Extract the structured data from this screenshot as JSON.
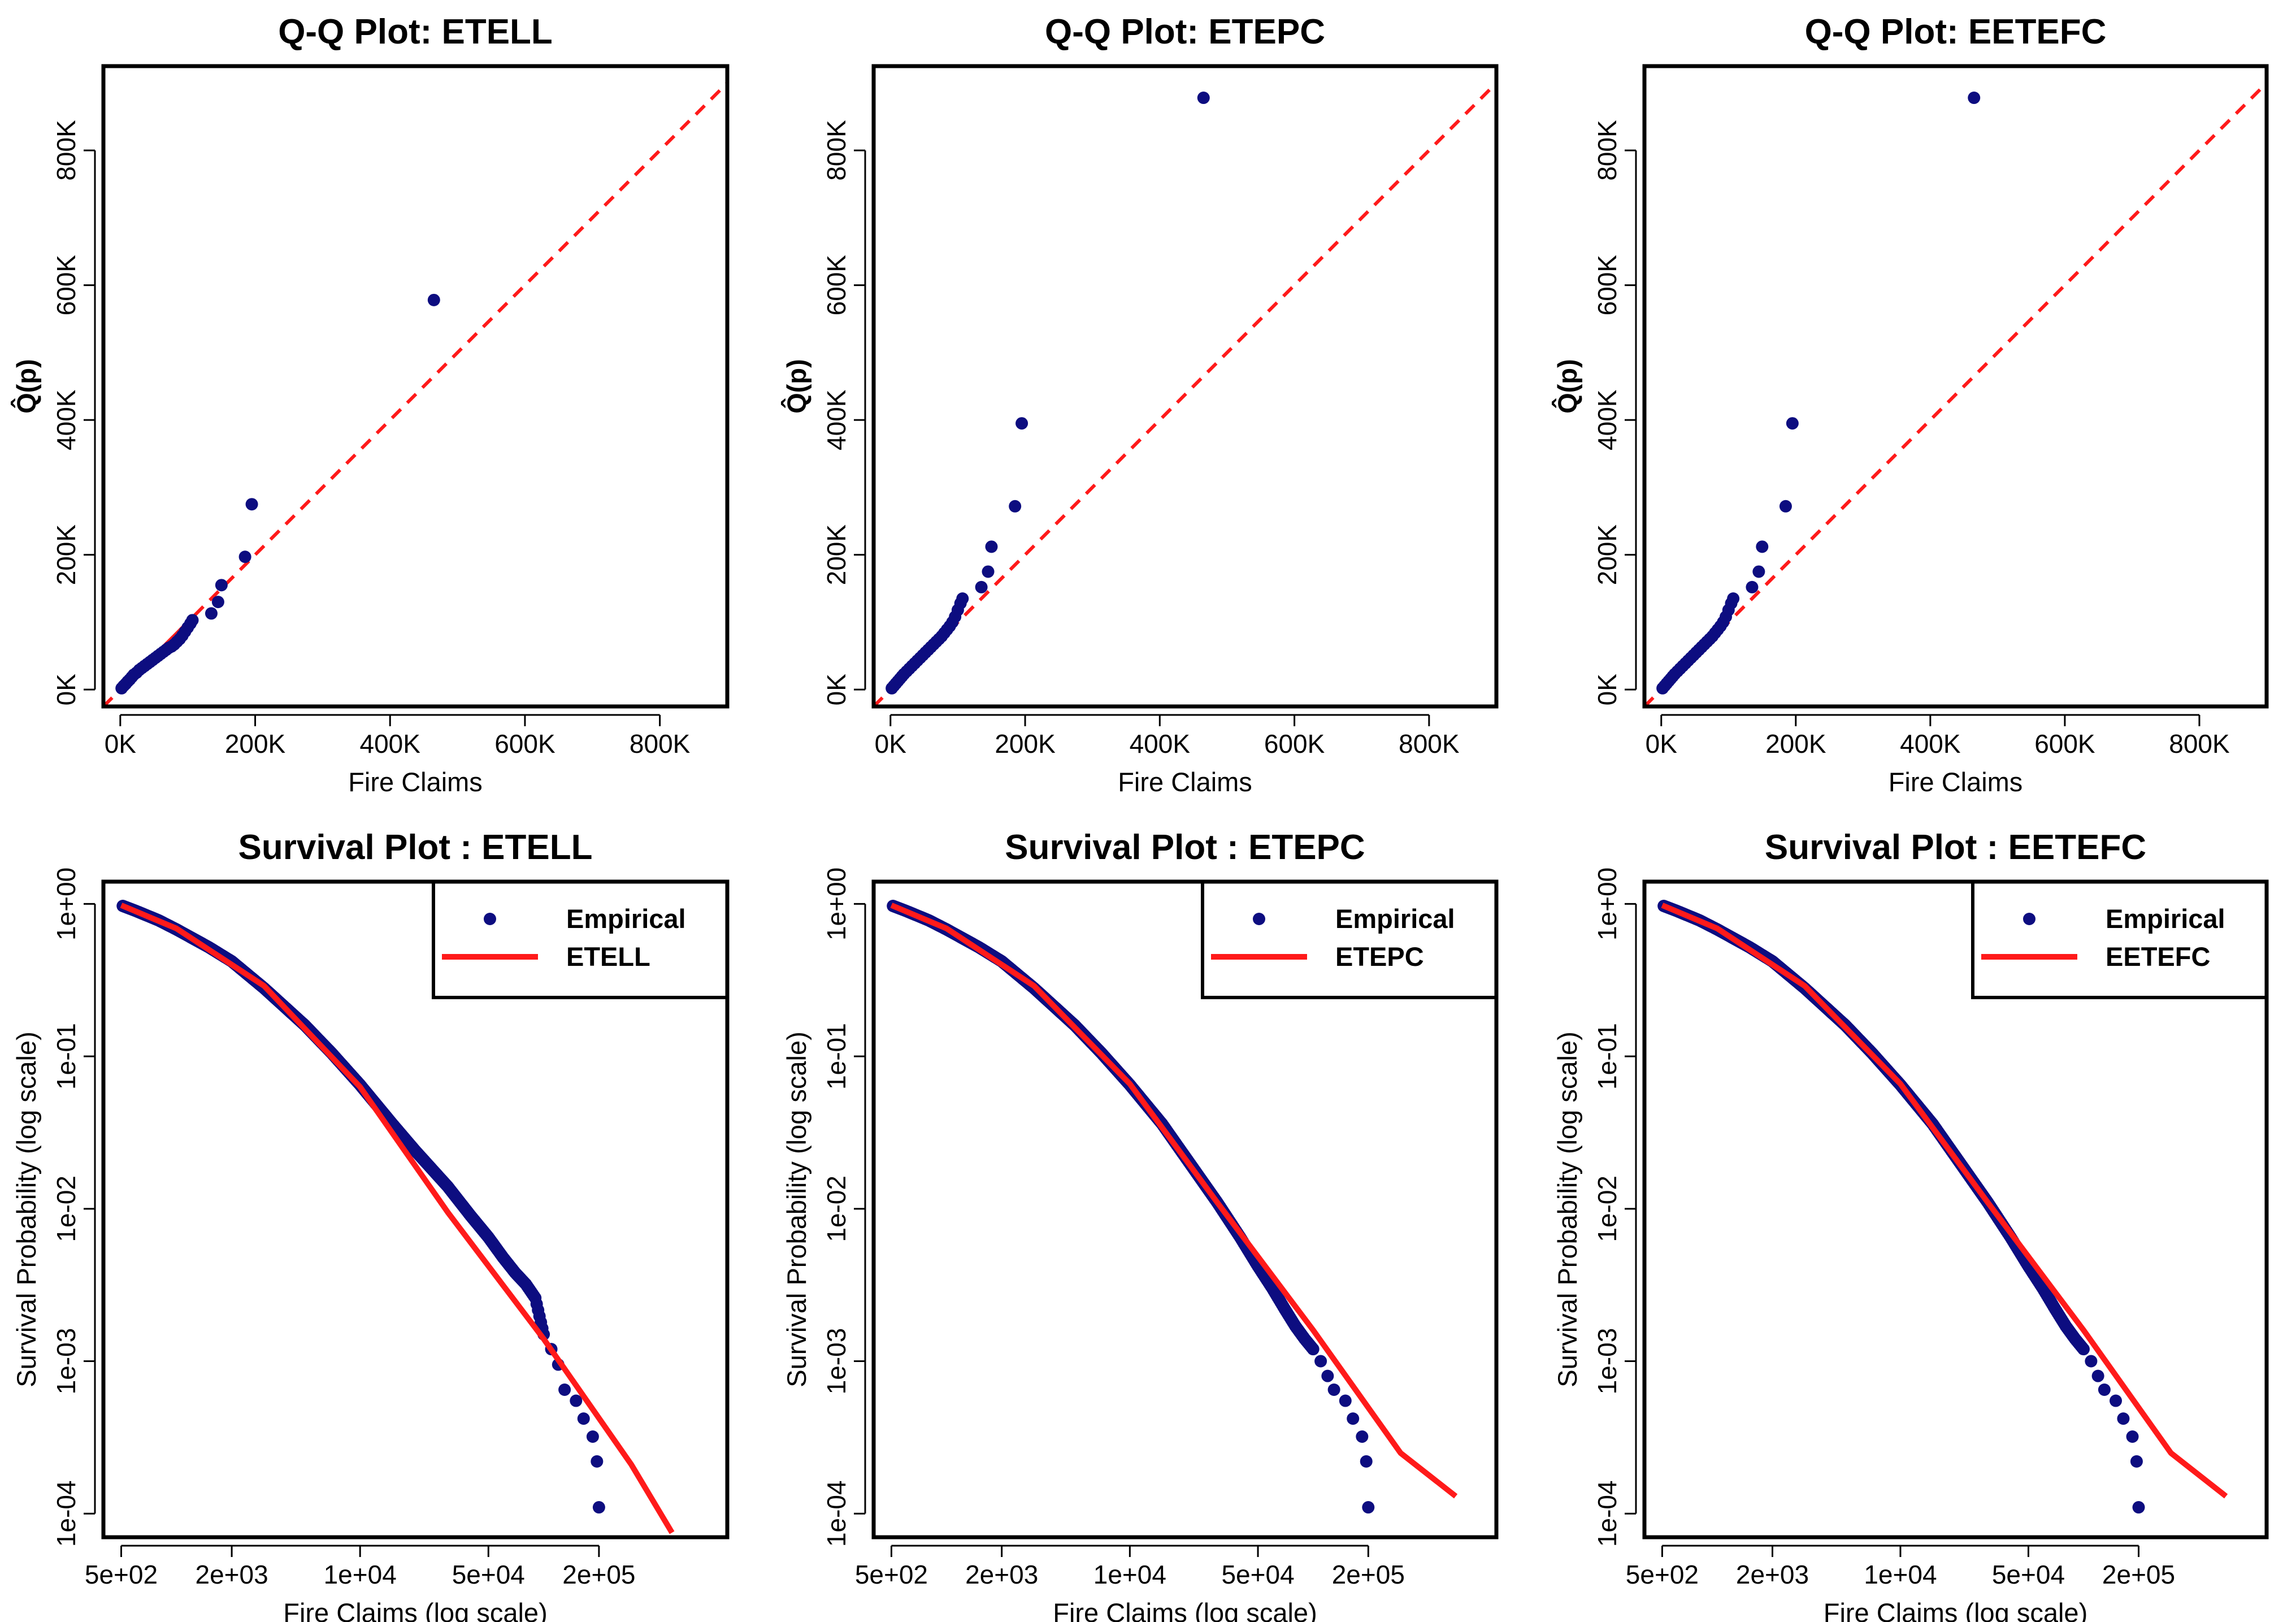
{
  "figure": {
    "panel_count": 6
  },
  "colors": {
    "points": "#0d0d80",
    "reference": "#ff1a1a",
    "frame": "#000000"
  },
  "chart_data": [
    {
      "type": "scatter",
      "panel": "qq",
      "title": "Q-Q Plot: ETELL",
      "xlabel": "Fire Claims",
      "ylabel": "Q̂(p)",
      "xlim": [
        -25000,
        900000
      ],
      "ylim": [
        -25000,
        925000
      ],
      "xticks": [
        0,
        200000,
        400000,
        600000,
        800000
      ],
      "xtick_labels": [
        "0K",
        "200K",
        "400K",
        "600K",
        "800K"
      ],
      "yticks": [
        0,
        200000,
        400000,
        600000,
        800000
      ],
      "ytick_labels": [
        "0K",
        "200K",
        "400K",
        "600K",
        "800K"
      ],
      "reference_line": {
        "style": "dashed",
        "slope": 1,
        "intercept": 0
      },
      "points": [
        [
          2000,
          2000
        ],
        [
          5000,
          5500
        ],
        [
          8000,
          8500
        ],
        [
          11000,
          12000
        ],
        [
          14000,
          15000
        ],
        [
          17000,
          18500
        ],
        [
          20000,
          22000
        ],
        [
          24000,
          25000
        ],
        [
          28000,
          29000
        ],
        [
          32000,
          32000
        ],
        [
          36000,
          35000
        ],
        [
          40000,
          38000
        ],
        [
          44000,
          41000
        ],
        [
          48000,
          44000
        ],
        [
          52000,
          47000
        ],
        [
          56000,
          50000
        ],
        [
          60000,
          53000
        ],
        [
          64000,
          56000
        ],
        [
          68000,
          59000
        ],
        [
          72000,
          62000
        ],
        [
          76000,
          64000
        ],
        [
          80000,
          67000
        ],
        [
          84000,
          71000
        ],
        [
          88000,
          75000
        ],
        [
          92000,
          80000
        ],
        [
          96000,
          86000
        ],
        [
          100000,
          92000
        ],
        [
          104000,
          98000
        ],
        [
          107000,
          103000
        ],
        [
          135000,
          113000
        ],
        [
          145000,
          130000
        ],
        [
          150000,
          155000
        ],
        [
          185000,
          197000
        ],
        [
          195000,
          275000
        ],
        [
          465000,
          578000
        ]
      ]
    },
    {
      "type": "scatter",
      "panel": "qq",
      "title": "Q-Q Plot: ETEPC",
      "xlabel": "Fire Claims",
      "ylabel": "Q̂(p)",
      "xlim": [
        -25000,
        900000
      ],
      "ylim": [
        -25000,
        925000
      ],
      "xticks": [
        0,
        200000,
        400000,
        600000,
        800000
      ],
      "xtick_labels": [
        "0K",
        "200K",
        "400K",
        "600K",
        "800K"
      ],
      "yticks": [
        0,
        200000,
        400000,
        600000,
        800000
      ],
      "ytick_labels": [
        "0K",
        "200K",
        "400K",
        "600K",
        "800K"
      ],
      "reference_line": {
        "style": "dashed",
        "slope": 1,
        "intercept": 0
      },
      "points": [
        [
          2000,
          2000
        ],
        [
          5000,
          5500
        ],
        [
          8000,
          9000
        ],
        [
          11000,
          12500
        ],
        [
          14000,
          16000
        ],
        [
          17000,
          19500
        ],
        [
          20000,
          23000
        ],
        [
          24000,
          27000
        ],
        [
          28000,
          31000
        ],
        [
          32000,
          35000
        ],
        [
          36000,
          39000
        ],
        [
          40000,
          43000
        ],
        [
          44000,
          47000
        ],
        [
          48000,
          51000
        ],
        [
          52000,
          55000
        ],
        [
          56000,
          59000
        ],
        [
          60000,
          63000
        ],
        [
          64000,
          67000
        ],
        [
          68000,
          71000
        ],
        [
          72000,
          75000
        ],
        [
          76000,
          79000
        ],
        [
          80000,
          84000
        ],
        [
          84000,
          89000
        ],
        [
          88000,
          94000
        ],
        [
          92000,
          100000
        ],
        [
          96000,
          108000
        ],
        [
          100000,
          118000
        ],
        [
          104000,
          128000
        ],
        [
          107000,
          135000
        ],
        [
          135000,
          152000
        ],
        [
          145000,
          175000
        ],
        [
          150000,
          212000
        ],
        [
          185000,
          272000
        ],
        [
          195000,
          395000
        ],
        [
          465000,
          878000
        ]
      ]
    },
    {
      "type": "scatter",
      "panel": "qq",
      "title": "Q-Q Plot: EETEFC",
      "xlabel": "Fire Claims",
      "ylabel": "Q̂(p)",
      "xlim": [
        -25000,
        900000
      ],
      "ylim": [
        -25000,
        925000
      ],
      "xticks": [
        0,
        200000,
        400000,
        600000,
        800000
      ],
      "xtick_labels": [
        "0K",
        "200K",
        "400K",
        "600K",
        "800K"
      ],
      "yticks": [
        0,
        200000,
        400000,
        600000,
        800000
      ],
      "ytick_labels": [
        "0K",
        "200K",
        "400K",
        "600K",
        "800K"
      ],
      "reference_line": {
        "style": "dashed",
        "slope": 1,
        "intercept": 0
      },
      "points": [
        [
          2000,
          2000
        ],
        [
          5000,
          5500
        ],
        [
          8000,
          9000
        ],
        [
          11000,
          12500
        ],
        [
          14000,
          16000
        ],
        [
          17000,
          19500
        ],
        [
          20000,
          23000
        ],
        [
          24000,
          27000
        ],
        [
          28000,
          31000
        ],
        [
          32000,
          35000
        ],
        [
          36000,
          39000
        ],
        [
          40000,
          43000
        ],
        [
          44000,
          47000
        ],
        [
          48000,
          51000
        ],
        [
          52000,
          55000
        ],
        [
          56000,
          59000
        ],
        [
          60000,
          63000
        ],
        [
          64000,
          67000
        ],
        [
          68000,
          71000
        ],
        [
          72000,
          75000
        ],
        [
          76000,
          79000
        ],
        [
          80000,
          84000
        ],
        [
          84000,
          89000
        ],
        [
          88000,
          94000
        ],
        [
          92000,
          100000
        ],
        [
          96000,
          108000
        ],
        [
          100000,
          118000
        ],
        [
          104000,
          128000
        ],
        [
          107000,
          135000
        ],
        [
          135000,
          152000
        ],
        [
          145000,
          175000
        ],
        [
          150000,
          212000
        ],
        [
          185000,
          272000
        ],
        [
          195000,
          395000
        ],
        [
          465000,
          878000
        ]
      ]
    },
    {
      "type": "scatter",
      "panel": "survival",
      "title": "Survival Plot : ETELL",
      "xlabel": "Fire Claims (log scale)",
      "ylabel": "Survival Probability (log scale)",
      "xscale": "log",
      "yscale": "log",
      "xlim": [
        400,
        1000000
      ],
      "ylim": [
        7e-05,
        1.4
      ],
      "xticks": [
        500,
        2000,
        10000,
        50000,
        200000
      ],
      "xtick_labels": [
        "5e+02",
        "2e+03",
        "1e+04",
        "5e+04",
        "2e+05"
      ],
      "yticks": [
        1,
        0.1,
        0.01,
        0.001,
        0.0001
      ],
      "ytick_labels": [
        "1e+00",
        "1e-01",
        "1e-02",
        "1e-03",
        "1e-04"
      ],
      "legend": {
        "position": "top-right",
        "entries": [
          {
            "label": "Empirical",
            "kind": "point"
          },
          {
            "label": "ETELL",
            "kind": "line"
          }
        ]
      },
      "empirical": [
        [
          510,
          0.97
        ],
        [
          600,
          0.9
        ],
        [
          800,
          0.78
        ],
        [
          1000,
          0.68
        ],
        [
          1500,
          0.52
        ],
        [
          2000,
          0.42
        ],
        [
          3000,
          0.28
        ],
        [
          5000,
          0.16
        ],
        [
          7000,
          0.105
        ],
        [
          10000,
          0.065
        ],
        [
          15000,
          0.036
        ],
        [
          20000,
          0.024
        ],
        [
          30000,
          0.014
        ],
        [
          40000,
          0.009
        ],
        [
          50000,
          0.0065
        ],
        [
          60000,
          0.0048
        ],
        [
          70000,
          0.0038
        ],
        [
          80000,
          0.0032
        ],
        [
          90000,
          0.0026
        ],
        [
          100000,
          0.0015
        ],
        [
          110000,
          0.0012
        ],
        [
          120000,
          0.00095
        ],
        [
          130000,
          0.00065
        ],
        [
          150000,
          0.00055
        ],
        [
          165000,
          0.00042
        ],
        [
          185000,
          0.00032
        ],
        [
          195000,
          0.00022
        ],
        [
          200000,
          0.00011
        ]
      ],
      "fitted": [
        [
          500,
          0.98
        ],
        [
          1000,
          0.69
        ],
        [
          3000,
          0.29
        ],
        [
          10000,
          0.063
        ],
        [
          30000,
          0.0095
        ],
        [
          100000,
          0.0014
        ],
        [
          300000,
          0.00021
        ],
        [
          500000,
          7.5e-05
        ]
      ]
    },
    {
      "type": "scatter",
      "panel": "survival",
      "title": "Survival Plot : ETEPC",
      "xlabel": "Fire Claims (log scale)",
      "ylabel": "Survival Probability (log scale)",
      "xscale": "log",
      "yscale": "log",
      "xlim": [
        400,
        1000000
      ],
      "ylim": [
        7e-05,
        1.4
      ],
      "xticks": [
        500,
        2000,
        10000,
        50000,
        200000
      ],
      "xtick_labels": [
        "5e+02",
        "2e+03",
        "1e+04",
        "5e+04",
        "2e+05"
      ],
      "yticks": [
        1,
        0.1,
        0.01,
        0.001,
        0.0001
      ],
      "ytick_labels": [
        "1e+00",
        "1e-01",
        "1e-02",
        "1e-03",
        "1e-04"
      ],
      "legend": {
        "position": "top-right",
        "entries": [
          {
            "label": "Empirical",
            "kind": "point"
          },
          {
            "label": "ETEPC",
            "kind": "line"
          }
        ]
      },
      "empirical": [
        [
          510,
          0.97
        ],
        [
          600,
          0.9
        ],
        [
          800,
          0.78
        ],
        [
          1000,
          0.68
        ],
        [
          1500,
          0.52
        ],
        [
          2000,
          0.42
        ],
        [
          3000,
          0.28
        ],
        [
          5000,
          0.16
        ],
        [
          7000,
          0.105
        ],
        [
          10000,
          0.065
        ],
        [
          15000,
          0.036
        ],
        [
          20000,
          0.022
        ],
        [
          30000,
          0.011
        ],
        [
          40000,
          0.0065
        ],
        [
          50000,
          0.0042
        ],
        [
          60000,
          0.003
        ],
        [
          70000,
          0.0022
        ],
        [
          80000,
          0.0017
        ],
        [
          90000,
          0.0014
        ],
        [
          100000,
          0.0012
        ],
        [
          110000,
          0.001
        ],
        [
          120000,
          0.0008
        ],
        [
          130000,
          0.00065
        ],
        [
          150000,
          0.00055
        ],
        [
          165000,
          0.00042
        ],
        [
          185000,
          0.00032
        ],
        [
          195000,
          0.00022
        ],
        [
          200000,
          0.00011
        ]
      ],
      "fitted": [
        [
          500,
          0.98
        ],
        [
          1000,
          0.69
        ],
        [
          3000,
          0.29
        ],
        [
          10000,
          0.066
        ],
        [
          30000,
          0.011
        ],
        [
          100000,
          0.0016
        ],
        [
          300000,
          0.00025
        ],
        [
          600000,
          0.00013
        ]
      ]
    },
    {
      "type": "scatter",
      "panel": "survival",
      "title": "Survival Plot : EETEFC",
      "xlabel": "Fire Claims (log scale)",
      "ylabel": "Survival Probability (log scale)",
      "xscale": "log",
      "yscale": "log",
      "xlim": [
        400,
        1000000
      ],
      "ylim": [
        7e-05,
        1.4
      ],
      "xticks": [
        500,
        2000,
        10000,
        50000,
        200000
      ],
      "xtick_labels": [
        "5e+02",
        "2e+03",
        "1e+04",
        "5e+04",
        "2e+05"
      ],
      "yticks": [
        1,
        0.1,
        0.01,
        0.001,
        0.0001
      ],
      "ytick_labels": [
        "1e+00",
        "1e-01",
        "1e-02",
        "1e-03",
        "1e-04"
      ],
      "legend": {
        "position": "top-right",
        "entries": [
          {
            "label": "Empirical",
            "kind": "point"
          },
          {
            "label": "EETEFC",
            "kind": "line"
          }
        ]
      },
      "empirical": [
        [
          510,
          0.97
        ],
        [
          600,
          0.9
        ],
        [
          800,
          0.78
        ],
        [
          1000,
          0.68
        ],
        [
          1500,
          0.52
        ],
        [
          2000,
          0.42
        ],
        [
          3000,
          0.28
        ],
        [
          5000,
          0.16
        ],
        [
          7000,
          0.105
        ],
        [
          10000,
          0.065
        ],
        [
          15000,
          0.036
        ],
        [
          20000,
          0.022
        ],
        [
          30000,
          0.011
        ],
        [
          40000,
          0.0065
        ],
        [
          50000,
          0.0042
        ],
        [
          60000,
          0.003
        ],
        [
          70000,
          0.0022
        ],
        [
          80000,
          0.0017
        ],
        [
          90000,
          0.0014
        ],
        [
          100000,
          0.0012
        ],
        [
          110000,
          0.001
        ],
        [
          120000,
          0.0008
        ],
        [
          130000,
          0.00065
        ],
        [
          150000,
          0.00055
        ],
        [
          165000,
          0.00042
        ],
        [
          185000,
          0.00032
        ],
        [
          195000,
          0.00022
        ],
        [
          200000,
          0.00011
        ]
      ],
      "fitted": [
        [
          500,
          0.98
        ],
        [
          1000,
          0.69
        ],
        [
          3000,
          0.29
        ],
        [
          10000,
          0.066
        ],
        [
          30000,
          0.011
        ],
        [
          100000,
          0.0016
        ],
        [
          300000,
          0.00025
        ],
        [
          600000,
          0.00013
        ]
      ]
    }
  ]
}
